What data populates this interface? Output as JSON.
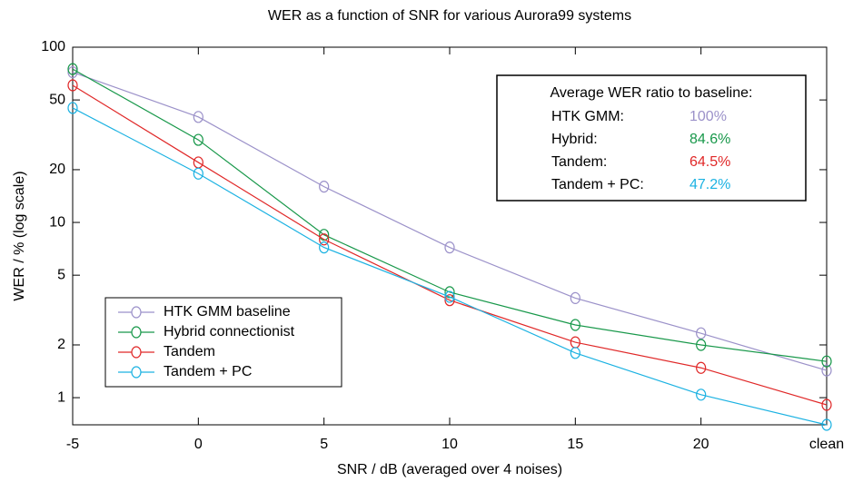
{
  "chart_data": {
    "type": "line",
    "title": "WER as a function of SNR for various Aurora99 systems",
    "xlabel": "SNR / dB (averaged over 4 noises)",
    "ylabel": "WER / % (log scale)",
    "categories": [
      "-5",
      "0",
      "5",
      "10",
      "15",
      "20",
      "clean"
    ],
    "log_scale": true,
    "ylim": [
      0.7,
      100
    ],
    "yticks": [
      1,
      2,
      5,
      10,
      20,
      50,
      100
    ],
    "legend": "lower left",
    "series": [
      {
        "name": "HTK GMM baseline",
        "color": "#9b91c9",
        "values": [
          72,
          40,
          16,
          7.2,
          3.7,
          2.33,
          1.43
        ]
      },
      {
        "name": "Hybrid connectionist",
        "color": "#18984a",
        "values": [
          75,
          29.6,
          8.5,
          4.0,
          2.6,
          2.0,
          1.61
        ]
      },
      {
        "name": "Tandem",
        "color": "#e02828",
        "values": [
          60.6,
          22,
          8.0,
          3.6,
          2.07,
          1.48,
          0.91
        ]
      },
      {
        "name": "Tandem + PC",
        "color": "#1cb2e2",
        "values": [
          45,
          19,
          7.2,
          3.76,
          1.8,
          1.04,
          0.7
        ]
      }
    ],
    "annotation": {
      "title": "Average WER ratio to baseline:",
      "rows": [
        {
          "label": "HTK GMM:",
          "value": "100%"
        },
        {
          "label": "Hybrid:",
          "value": "84.6%"
        },
        {
          "label": "Tandem:",
          "value": "64.5%"
        },
        {
          "label": "Tandem + PC:",
          "value": "47.2%"
        }
      ]
    }
  }
}
